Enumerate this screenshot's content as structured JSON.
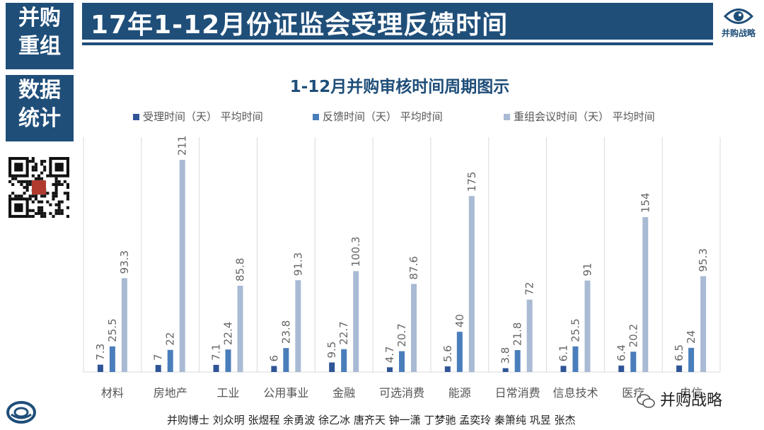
{
  "sidebar": {
    "block1": [
      "并购",
      "重组"
    ],
    "block2": [
      "数据",
      "统计"
    ]
  },
  "header": {
    "title": "17年1-12月份证监会受理反馈时间",
    "logo_text": "并购战略"
  },
  "footer": {
    "credits": "并购博士 刘众明 张煜程 余勇波 徐乙冰 唐齐天 钟一潇 丁梦驰 孟奕玲 秦箫纯 巩昱 张杰",
    "watermark": "并购战略"
  },
  "colors": {
    "brand": "#1f4e79",
    "series1": "#2f5597",
    "series2": "#4a7ebb",
    "series3": "#a9bad4"
  },
  "chart_data": {
    "type": "bar",
    "title": "1-12月并购审核时间周期图示",
    "categories": [
      "材料",
      "房地产",
      "工业",
      "公用事业",
      "金融",
      "可选消费",
      "能源",
      "日常消费",
      "信息技术",
      "医疗",
      "电信"
    ],
    "series": [
      {
        "name": "受理时间（天） 平均时间",
        "values": [
          7.3,
          7,
          7.1,
          6,
          9.5,
          4.7,
          5.6,
          3.8,
          6.1,
          6.4,
          6.5
        ]
      },
      {
        "name": "反馈时间（天） 平均时间",
        "values": [
          25.5,
          22,
          22.4,
          23.8,
          22.7,
          20.7,
          40,
          21.8,
          25.5,
          20.2,
          24
        ]
      },
      {
        "name": "重组会议时间（天） 平均时间",
        "values": [
          93.3,
          211,
          85.8,
          91.3,
          100.3,
          87.6,
          175,
          72,
          91,
          154,
          95.3
        ]
      }
    ],
    "value_labels": [
      [
        "7.3",
        "7",
        "7.1",
        "6",
        "9.5",
        "4.7",
        "5.6",
        "3.8",
        "6.1",
        "6.4",
        "6.5"
      ],
      [
        "25.5",
        "22",
        "22.4",
        "23.8",
        "22.7",
        "20.7",
        "40",
        "21.8",
        "25.5",
        "20.2",
        "24"
      ],
      [
        "93.3",
        "211",
        "85.8",
        "91.3",
        "100.3",
        "87.6",
        "175",
        "72",
        "91",
        "154",
        "95.3"
      ]
    ],
    "ylim": [
      0,
      250
    ],
    "grid": "vertical separators",
    "legend": "top"
  }
}
